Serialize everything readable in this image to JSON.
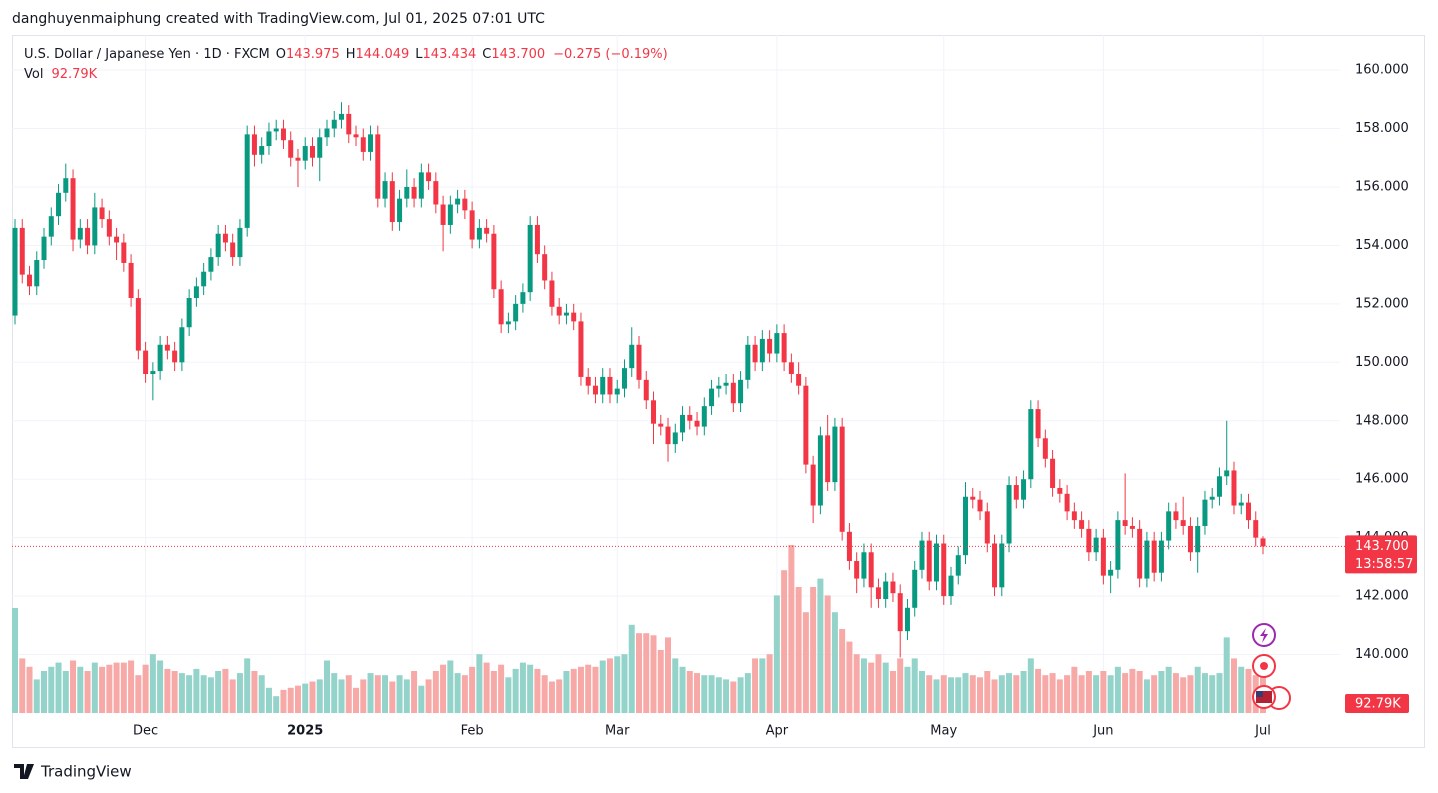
{
  "attribution": "danghuyenmaiphung created with TradingView.com, Jul 01, 2025 07:01 UTC",
  "footer": "TradingView",
  "chart_data": {
    "type": "candlestick",
    "title": "U.S. Dollar / Japanese Yen · 1D · FXCM",
    "legend": {
      "o_label": "O",
      "open": "143.975",
      "h_label": "H",
      "high": "144.049",
      "l_label": "L",
      "low": "143.434",
      "c_label": "C",
      "close": "143.700",
      "change": "−0.275 (−0.19%)"
    },
    "volume_title": "Vol",
    "volume_label": "92.79K",
    "countdown": "13:58:57",
    "up_color": "#089981",
    "down_color": "#f23645",
    "volume_up_color": "#93d3ca",
    "volume_down_color": "#f7a9a7",
    "grid": true,
    "ylim": [
      138,
      161.2
    ],
    "yticks": [
      {
        "value": 140,
        "label": "140.000"
      },
      {
        "value": 142,
        "label": "142.000"
      },
      {
        "value": 144,
        "label": "144.000"
      },
      {
        "value": 146,
        "label": "146.000"
      },
      {
        "value": 148,
        "label": "148.000"
      },
      {
        "value": 150,
        "label": "150.000"
      },
      {
        "value": 152,
        "label": "152.000"
      },
      {
        "value": 154,
        "label": "154.000"
      },
      {
        "value": 156,
        "label": "156.000"
      },
      {
        "value": 158,
        "label": "158.000"
      },
      {
        "value": 160,
        "label": "160.000"
      }
    ],
    "volume_lim": [
      0,
      400000
    ],
    "categories": [
      null,
      null,
      null,
      null,
      null,
      null,
      null,
      null,
      null,
      null,
      null,
      null,
      null,
      null,
      null,
      null,
      null,
      null,
      "Dec",
      null,
      null,
      null,
      null,
      null,
      null,
      null,
      null,
      null,
      null,
      null,
      null,
      null,
      null,
      null,
      null,
      null,
      null,
      null,
      null,
      null,
      "2025",
      null,
      null,
      null,
      null,
      null,
      null,
      null,
      null,
      null,
      null,
      null,
      null,
      null,
      null,
      null,
      null,
      null,
      null,
      null,
      null,
      null,
      null,
      "Feb",
      null,
      null,
      null,
      null,
      null,
      null,
      null,
      null,
      null,
      null,
      null,
      null,
      null,
      null,
      null,
      null,
      null,
      null,
      null,
      "Mar",
      null,
      null,
      null,
      null,
      null,
      null,
      null,
      null,
      null,
      null,
      null,
      null,
      null,
      null,
      null,
      null,
      null,
      null,
      null,
      null,
      null,
      "Apr",
      null,
      null,
      null,
      null,
      null,
      null,
      null,
      null,
      null,
      null,
      null,
      null,
      null,
      null,
      null,
      null,
      null,
      null,
      null,
      null,
      null,
      null,
      "May",
      null,
      null,
      null,
      null,
      null,
      null,
      null,
      null,
      null,
      null,
      null,
      null,
      null,
      null,
      null,
      null,
      null,
      null,
      null,
      null,
      null,
      "Jun",
      null,
      null,
      null,
      null,
      null,
      null,
      null,
      null,
      null,
      null,
      null,
      null,
      null,
      null,
      null,
      null,
      null,
      null,
      null,
      null,
      null,
      "Jul"
    ],
    "open": [
      151.6,
      154.6,
      153.0,
      152.6,
      153.5,
      154.3,
      155.0,
      155.8,
      156.3,
      154.2,
      154.6,
      154.0,
      155.3,
      154.9,
      154.3,
      154.1,
      153.4,
      152.2,
      150.4,
      149.6,
      149.7,
      150.6,
      150.4,
      150.0,
      151.2,
      152.2,
      152.6,
      153.1,
      153.6,
      154.4,
      154.1,
      153.6,
      154.6,
      157.8,
      157.1,
      157.4,
      157.9,
      158.0,
      157.6,
      157.0,
      156.9,
      157.4,
      157.0,
      157.7,
      158.0,
      158.3,
      158.5,
      157.8,
      157.7,
      157.2,
      157.8,
      155.6,
      156.2,
      154.8,
      155.6,
      156.0,
      155.6,
      156.5,
      156.2,
      155.4,
      154.7,
      155.4,
      155.6,
      155.2,
      154.2,
      154.6,
      154.4,
      152.5,
      151.3,
      151.4,
      152.0,
      152.4,
      154.7,
      153.7,
      152.8,
      151.9,
      151.6,
      151.7,
      151.4,
      149.5,
      149.2,
      148.9,
      149.5,
      148.9,
      149.1,
      149.8,
      150.6,
      149.4,
      148.7,
      147.9,
      147.8,
      147.2,
      147.6,
      148.2,
      148.0,
      147.8,
      148.5,
      149.1,
      149.2,
      149.3,
      148.6,
      149.4,
      150.6,
      150.0,
      150.8,
      150.3,
      151.0,
      150.0,
      149.6,
      149.2,
      146.5,
      145.1,
      147.5,
      145.9,
      147.8,
      144.2,
      143.2,
      142.6,
      143.5,
      142.3,
      141.9,
      142.5,
      142.1,
      140.8,
      141.6,
      142.9,
      143.9,
      142.5,
      143.8,
      142.0,
      142.7,
      143.4,
      145.4,
      145.3,
      144.9,
      143.8,
      142.3,
      143.8,
      145.8,
      145.3,
      146.0,
      148.4,
      147.4,
      146.7,
      145.7,
      145.5,
      144.9,
      144.6,
      144.3,
      143.5,
      144.0,
      142.7,
      142.9,
      144.6,
      144.4,
      144.3,
      142.6,
      143.9,
      142.8,
      143.9,
      144.9,
      144.6,
      144.4,
      143.5,
      144.4,
      145.3,
      145.4,
      146.1,
      146.3,
      145.1,
      145.2,
      144.6,
      143.975
    ],
    "high": [
      154.9,
      154.9,
      153.3,
      153.8,
      154.6,
      155.3,
      156.1,
      156.8,
      156.6,
      154.9,
      154.9,
      155.8,
      155.6,
      155.2,
      154.6,
      154.4,
      153.7,
      152.5,
      150.7,
      150.0,
      150.9,
      150.9,
      150.7,
      151.5,
      152.5,
      152.9,
      153.4,
      153.9,
      154.7,
      154.7,
      154.4,
      154.9,
      158.1,
      158.1,
      157.7,
      158.2,
      158.3,
      158.3,
      157.9,
      157.3,
      157.7,
      157.7,
      158.0,
      158.3,
      158.6,
      158.9,
      158.8,
      158.1,
      158.0,
      158.1,
      158.1,
      156.5,
      156.5,
      155.9,
      156.6,
      156.3,
      156.8,
      156.8,
      156.5,
      155.7,
      155.7,
      155.9,
      155.9,
      155.5,
      154.9,
      154.9,
      154.7,
      152.8,
      151.7,
      152.3,
      152.7,
      155.0,
      155.0,
      154.0,
      153.1,
      152.2,
      152.0,
      152.0,
      151.7,
      149.8,
      149.5,
      149.8,
      149.8,
      149.4,
      150.1,
      151.2,
      150.9,
      149.7,
      149.0,
      148.2,
      148.1,
      147.9,
      148.5,
      148.5,
      148.3,
      148.8,
      149.4,
      149.5,
      149.6,
      149.6,
      149.7,
      150.9,
      150.9,
      151.1,
      151.1,
      151.3,
      151.3,
      150.3,
      150.0,
      149.5,
      146.8,
      147.8,
      148.2,
      148.1,
      148.1,
      144.5,
      143.5,
      143.8,
      143.8,
      142.6,
      142.8,
      142.8,
      142.4,
      141.9,
      143.2,
      144.2,
      144.2,
      144.1,
      144.1,
      143.0,
      143.7,
      145.9,
      145.7,
      145.6,
      145.2,
      144.1,
      144.1,
      146.1,
      146.1,
      146.3,
      148.7,
      148.7,
      147.7,
      147.0,
      146.0,
      145.8,
      145.2,
      144.9,
      144.6,
      144.3,
      144.3,
      143.2,
      144.9,
      146.2,
      144.7,
      144.6,
      144.2,
      144.2,
      144.2,
      145.2,
      145.2,
      145.4,
      144.7,
      144.7,
      145.6,
      145.7,
      146.4,
      148.0,
      146.6,
      145.5,
      145.5,
      144.9,
      144.049
    ],
    "low": [
      151.3,
      152.7,
      152.3,
      152.3,
      153.2,
      154.0,
      154.7,
      155.5,
      153.8,
      153.9,
      153.7,
      153.7,
      154.6,
      154.0,
      153.5,
      153.1,
      151.9,
      150.1,
      149.3,
      148.7,
      149.4,
      150.1,
      149.7,
      149.7,
      150.9,
      151.9,
      152.3,
      152.8,
      153.3,
      153.8,
      153.3,
      153.3,
      154.3,
      156.7,
      156.8,
      157.1,
      157.6,
      157.3,
      156.7,
      156.0,
      156.6,
      156.7,
      156.2,
      157.4,
      157.7,
      158.0,
      157.5,
      157.4,
      156.9,
      156.9,
      155.3,
      155.3,
      154.5,
      154.5,
      155.3,
      155.3,
      155.3,
      155.9,
      155.1,
      153.8,
      154.4,
      155.1,
      154.9,
      153.9,
      153.9,
      154.1,
      152.2,
      151.0,
      151.0,
      151.1,
      151.7,
      152.1,
      153.4,
      152.5,
      151.6,
      151.3,
      151.3,
      151.1,
      149.2,
      148.9,
      148.6,
      148.6,
      148.6,
      148.6,
      148.8,
      149.5,
      149.1,
      148.4,
      147.2,
      147.5,
      146.6,
      146.9,
      147.3,
      147.7,
      147.5,
      147.5,
      148.2,
      148.8,
      148.9,
      148.3,
      148.3,
      149.1,
      149.7,
      149.7,
      150.0,
      150.0,
      149.7,
      149.3,
      148.9,
      146.2,
      144.5,
      144.8,
      145.6,
      145.6,
      143.9,
      142.9,
      142.1,
      142.3,
      141.6,
      141.6,
      141.6,
      141.8,
      139.9,
      140.5,
      141.3,
      142.6,
      142.2,
      142.2,
      141.7,
      141.7,
      142.4,
      143.1,
      145.0,
      144.6,
      143.5,
      142.0,
      142.0,
      143.5,
      145.0,
      145.0,
      145.7,
      147.1,
      146.4,
      145.4,
      145.2,
      144.6,
      144.3,
      144.0,
      143.2,
      143.2,
      142.4,
      142.1,
      142.6,
      144.1,
      144.0,
      142.3,
      142.3,
      142.5,
      142.5,
      143.6,
      144.3,
      144.1,
      143.2,
      142.8,
      144.1,
      145.0,
      145.1,
      145.8,
      144.8,
      144.8,
      144.3,
      143.7,
      143.434
    ],
    "close": [
      154.6,
      153.0,
      152.6,
      153.5,
      154.3,
      155.0,
      155.8,
      156.3,
      154.2,
      154.6,
      154.0,
      155.3,
      154.9,
      154.3,
      154.1,
      153.4,
      152.2,
      150.4,
      149.6,
      149.7,
      150.6,
      150.4,
      150.0,
      151.2,
      152.2,
      152.6,
      153.1,
      153.6,
      154.4,
      154.1,
      153.6,
      154.6,
      157.8,
      157.1,
      157.4,
      157.9,
      158.0,
      157.6,
      157.0,
      156.9,
      157.4,
      157.0,
      157.7,
      158.0,
      158.3,
      158.5,
      157.8,
      157.7,
      157.2,
      157.8,
      155.6,
      156.2,
      154.8,
      155.6,
      156.0,
      155.6,
      156.5,
      156.2,
      155.4,
      154.7,
      155.4,
      155.6,
      155.2,
      154.2,
      154.6,
      154.4,
      152.5,
      151.3,
      151.4,
      152.0,
      152.4,
      154.7,
      153.7,
      152.8,
      151.9,
      151.6,
      151.7,
      151.4,
      149.5,
      149.2,
      148.9,
      149.5,
      148.9,
      149.1,
      149.8,
      150.6,
      149.4,
      148.7,
      147.9,
      147.8,
      147.2,
      147.6,
      148.2,
      148.0,
      147.8,
      148.5,
      149.1,
      149.2,
      149.3,
      148.6,
      149.4,
      150.6,
      150.0,
      150.8,
      150.3,
      151.0,
      150.0,
      149.6,
      149.2,
      146.5,
      145.1,
      147.5,
      145.9,
      147.8,
      144.2,
      143.2,
      142.6,
      143.5,
      142.3,
      141.9,
      142.5,
      142.1,
      140.8,
      141.6,
      142.9,
      143.9,
      142.5,
      143.8,
      142.0,
      142.7,
      143.4,
      145.4,
      145.3,
      144.9,
      143.8,
      142.3,
      143.8,
      145.8,
      145.3,
      146.0,
      148.4,
      147.4,
      146.7,
      145.7,
      145.5,
      144.9,
      144.6,
      144.3,
      143.5,
      144.0,
      142.7,
      142.9,
      144.6,
      144.4,
      144.3,
      142.6,
      143.9,
      142.8,
      143.9,
      144.9,
      144.6,
      144.4,
      143.5,
      144.4,
      145.3,
      145.4,
      146.1,
      146.3,
      145.1,
      145.2,
      144.6,
      144.0,
      143.7
    ],
    "volume": [
      250000,
      130000,
      110000,
      80000,
      100000,
      110000,
      120000,
      100000,
      125000,
      110000,
      100000,
      120000,
      110000,
      115000,
      120000,
      120000,
      125000,
      90000,
      115000,
      140000,
      125000,
      105000,
      100000,
      95000,
      90000,
      105000,
      90000,
      85000,
      100000,
      105000,
      80000,
      95000,
      130000,
      100000,
      90000,
      60000,
      40000,
      55000,
      60000,
      65000,
      70000,
      75000,
      80000,
      125000,
      95000,
      80000,
      90000,
      60000,
      80000,
      95000,
      90000,
      90000,
      75000,
      90000,
      80000,
      100000,
      65000,
      80000,
      100000,
      115000,
      125000,
      95000,
      90000,
      110000,
      140000,
      120000,
      100000,
      115000,
      85000,
      105000,
      120000,
      115000,
      105000,
      90000,
      75000,
      80000,
      100000,
      105000,
      110000,
      115000,
      110000,
      125000,
      130000,
      135000,
      140000,
      210000,
      190000,
      190000,
      185000,
      150000,
      180000,
      130000,
      110000,
      100000,
      95000,
      90000,
      90000,
      85000,
      80000,
      75000,
      85000,
      95000,
      130000,
      130000,
      140000,
      280000,
      340000,
      400000,
      300000,
      240000,
      300000,
      320000,
      280000,
      240000,
      200000,
      170000,
      140000,
      130000,
      120000,
      140000,
      120000,
      100000,
      130000,
      110000,
      130000,
      100000,
      90000,
      80000,
      90000,
      85000,
      85000,
      95000,
      90000,
      85000,
      100000,
      80000,
      90000,
      95000,
      90000,
      100000,
      130000,
      105000,
      90000,
      95000,
      80000,
      90000,
      110000,
      90000,
      100000,
      90000,
      100000,
      90000,
      110000,
      95000,
      105000,
      100000,
      80000,
      90000,
      100000,
      110000,
      95000,
      85000,
      90000,
      110000,
      95000,
      90000,
      95000,
      180000,
      130000,
      110000,
      105000,
      90000,
      92790
    ]
  }
}
